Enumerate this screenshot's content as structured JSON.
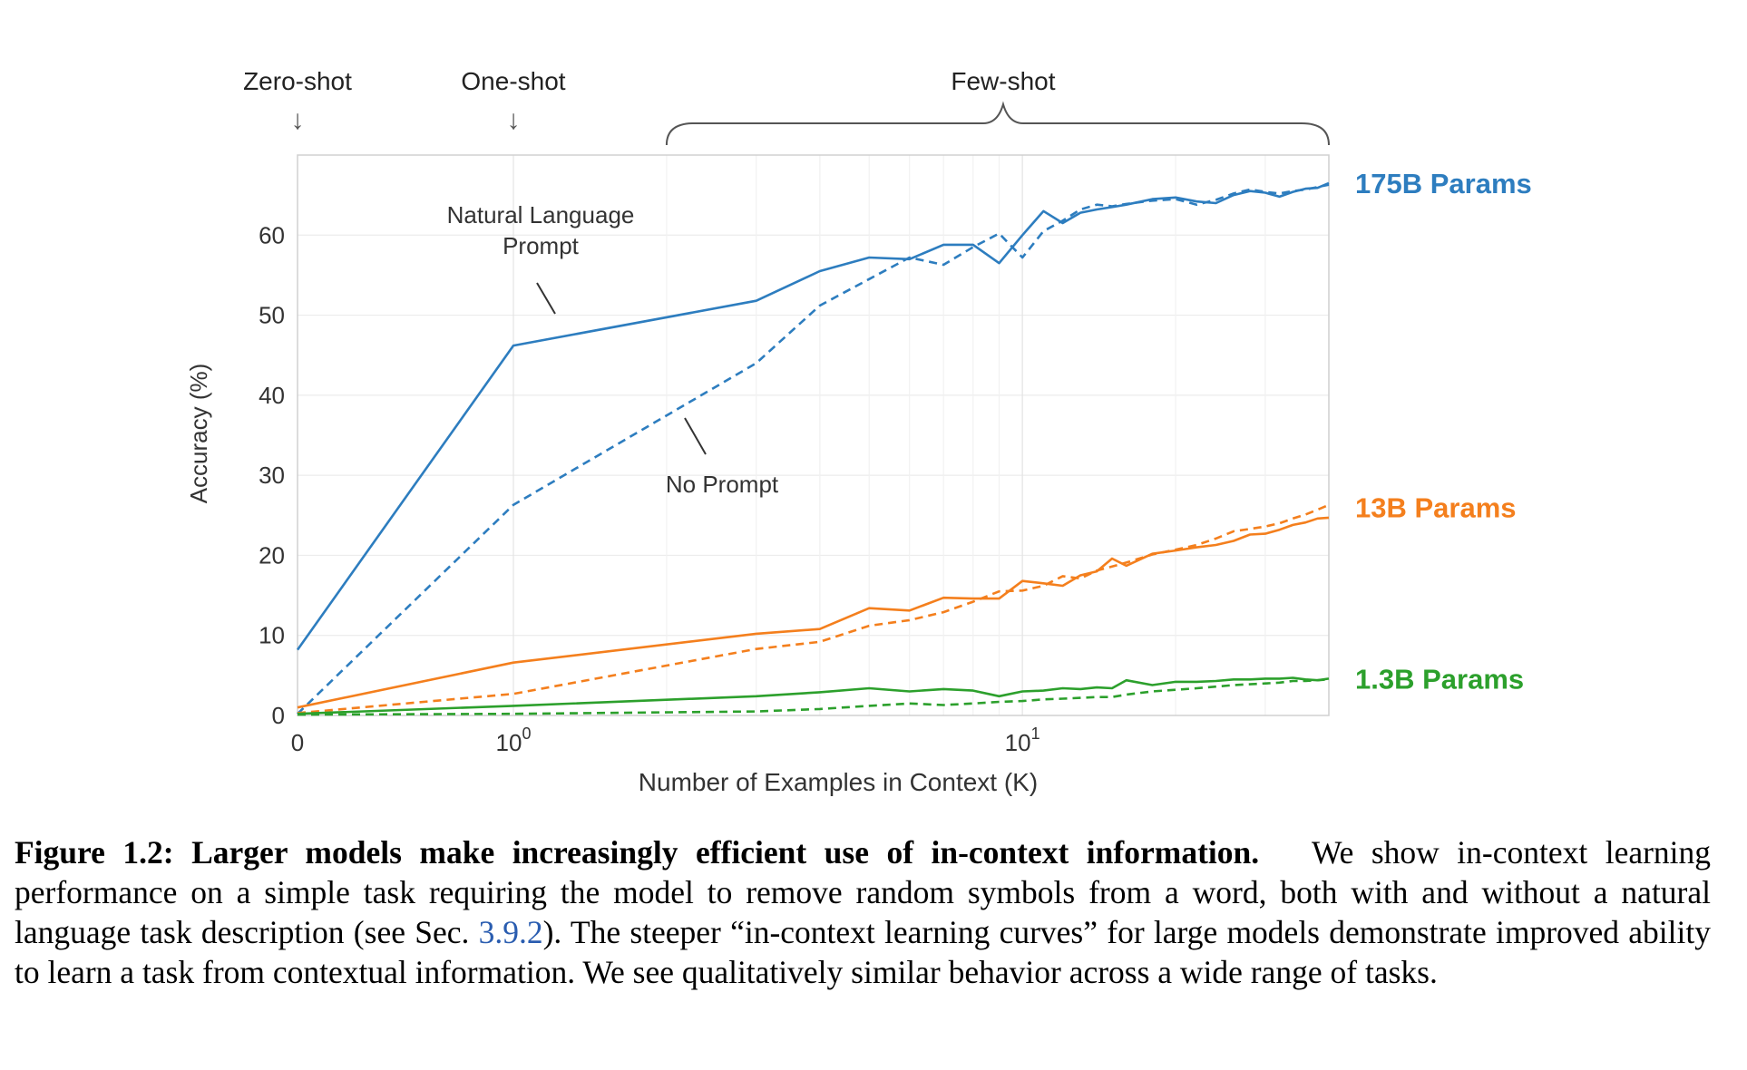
{
  "chart_data": {
    "type": "line",
    "xlabel": "Number of Examples in Context  (K)",
    "ylabel": "Accuracy (%)",
    "xscale": "symlog",
    "xlim": [
      0,
      40
    ],
    "ylim": [
      0,
      70
    ],
    "grid": true,
    "x_ticks": [
      {
        "value": 0,
        "label": "0"
      },
      {
        "value": 1,
        "label": "10^0"
      },
      {
        "value": 10,
        "label": "10^1"
      }
    ],
    "y_ticks": [
      0,
      10,
      20,
      30,
      40,
      50,
      60
    ],
    "regime_labels": [
      {
        "text": "Zero-shot",
        "k": 0,
        "marker": "↓"
      },
      {
        "text": "One-shot",
        "k": 1,
        "marker": "↓"
      },
      {
        "text": "Few-shot",
        "k_range": [
          2,
          40
        ],
        "marker": "brace"
      }
    ],
    "annotations": [
      {
        "text_lines": [
          "Natural Language",
          "Prompt"
        ],
        "points_to": "175B prompt"
      },
      {
        "text_lines": [
          "No Prompt"
        ],
        "points_to": "175B no prompt"
      }
    ],
    "series": [
      {
        "name": "175B Params",
        "color": "#2d7dbf",
        "style": "solid",
        "points": [
          [
            0,
            8.2
          ],
          [
            1,
            46.2
          ],
          [
            3,
            51.8
          ],
          [
            4,
            55.5
          ],
          [
            5,
            57.2
          ],
          [
            6,
            57
          ],
          [
            7,
            58.8
          ],
          [
            8,
            58.8
          ],
          [
            9,
            56.5
          ],
          [
            10,
            60
          ],
          [
            11,
            63
          ],
          [
            12,
            61.5
          ],
          [
            13,
            62.8
          ],
          [
            14,
            63.2
          ],
          [
            15,
            63.5
          ],
          [
            16,
            63.8
          ],
          [
            18,
            64.5
          ],
          [
            20,
            64.7
          ],
          [
            22,
            64.2
          ],
          [
            24,
            64
          ],
          [
            26,
            65
          ],
          [
            28,
            65.5
          ],
          [
            30,
            65.3
          ],
          [
            32,
            64.8
          ],
          [
            34,
            65.4
          ],
          [
            36,
            65.8
          ],
          [
            38,
            65.9
          ],
          [
            40,
            66.5
          ]
        ]
      },
      {
        "name": "175B Params",
        "color": "#2d7dbf",
        "style": "dashed",
        "points": [
          [
            0,
            0.2
          ],
          [
            1,
            26.3
          ],
          [
            3,
            44
          ],
          [
            4,
            51.2
          ],
          [
            5,
            54.5
          ],
          [
            6,
            57.2
          ],
          [
            7,
            56.3
          ],
          [
            8,
            58.5
          ],
          [
            9,
            60.2
          ],
          [
            10,
            57.2
          ],
          [
            11,
            60.5
          ],
          [
            12,
            61.8
          ],
          [
            13,
            63.2
          ],
          [
            14,
            63.8
          ],
          [
            15,
            63.6
          ],
          [
            16,
            63.9
          ],
          [
            18,
            64.3
          ],
          [
            20,
            64.5
          ],
          [
            22,
            63.8
          ],
          [
            24,
            64.4
          ],
          [
            26,
            65.2
          ],
          [
            28,
            65.7
          ],
          [
            30,
            65.4
          ],
          [
            32,
            65.2
          ],
          [
            34,
            65.5
          ],
          [
            36,
            65.7
          ],
          [
            38,
            66
          ],
          [
            40,
            66.3
          ]
        ]
      },
      {
        "name": "13B Params",
        "color": "#f47f1d",
        "style": "solid",
        "points": [
          [
            0,
            1
          ],
          [
            1,
            6.6
          ],
          [
            3,
            10.2
          ],
          [
            4,
            10.8
          ],
          [
            5,
            13.4
          ],
          [
            6,
            13.1
          ],
          [
            7,
            14.7
          ],
          [
            8,
            14.6
          ],
          [
            9,
            14.6
          ],
          [
            10,
            16.8
          ],
          [
            11,
            16.5
          ],
          [
            12,
            16.2
          ],
          [
            13,
            17.5
          ],
          [
            14,
            18
          ],
          [
            15,
            19.6
          ],
          [
            16,
            18.7
          ],
          [
            18,
            20.2
          ],
          [
            20,
            20.6
          ],
          [
            22,
            21
          ],
          [
            24,
            21.3
          ],
          [
            26,
            21.8
          ],
          [
            28,
            22.6
          ],
          [
            30,
            22.7
          ],
          [
            32,
            23.2
          ],
          [
            34,
            23.8
          ],
          [
            36,
            24.1
          ],
          [
            38,
            24.6
          ],
          [
            40,
            24.7
          ]
        ]
      },
      {
        "name": "13B Params",
        "color": "#f47f1d",
        "style": "dashed",
        "points": [
          [
            0,
            0.3
          ],
          [
            1,
            2.7
          ],
          [
            3,
            8.3
          ],
          [
            4,
            9.2
          ],
          [
            5,
            11.2
          ],
          [
            6,
            11.9
          ],
          [
            7,
            12.9
          ],
          [
            8,
            14.2
          ],
          [
            9,
            15.5
          ],
          [
            10,
            15.6
          ],
          [
            11,
            16.2
          ],
          [
            12,
            17.4
          ],
          [
            13,
            17.1
          ],
          [
            14,
            18.1
          ],
          [
            15,
            18.6
          ],
          [
            16,
            19.1
          ],
          [
            18,
            20.1
          ],
          [
            20,
            20.7
          ],
          [
            22,
            21.3
          ],
          [
            24,
            22.1
          ],
          [
            26,
            23
          ],
          [
            28,
            23.3
          ],
          [
            30,
            23.6
          ],
          [
            32,
            24
          ],
          [
            34,
            24.6
          ],
          [
            36,
            25.1
          ],
          [
            38,
            25.7
          ],
          [
            40,
            26.3
          ]
        ]
      },
      {
        "name": "1.3B Params",
        "color": "#2ca02c",
        "style": "solid",
        "points": [
          [
            0,
            0.2
          ],
          [
            1,
            1.2
          ],
          [
            3,
            2.4
          ],
          [
            4,
            2.9
          ],
          [
            5,
            3.4
          ],
          [
            6,
            3
          ],
          [
            7,
            3.3
          ],
          [
            8,
            3.1
          ],
          [
            9,
            2.4
          ],
          [
            10,
            3
          ],
          [
            11,
            3.1
          ],
          [
            12,
            3.4
          ],
          [
            13,
            3.3
          ],
          [
            14,
            3.5
          ],
          [
            15,
            3.4
          ],
          [
            16,
            4.4
          ],
          [
            18,
            3.8
          ],
          [
            20,
            4.2
          ],
          [
            22,
            4.2
          ],
          [
            24,
            4.3
          ],
          [
            26,
            4.5
          ],
          [
            28,
            4.5
          ],
          [
            30,
            4.6
          ],
          [
            32,
            4.6
          ],
          [
            34,
            4.7
          ],
          [
            36,
            4.5
          ],
          [
            38,
            4.4
          ],
          [
            40,
            4.6
          ]
        ]
      },
      {
        "name": "1.3B Params",
        "color": "#2ca02c",
        "style": "dashed",
        "points": [
          [
            0,
            0.1
          ],
          [
            1,
            0.2
          ],
          [
            3,
            0.5
          ],
          [
            4,
            0.8
          ],
          [
            5,
            1.2
          ],
          [
            6,
            1.5
          ],
          [
            7,
            1.3
          ],
          [
            8,
            1.5
          ],
          [
            9,
            1.7
          ],
          [
            10,
            1.8
          ],
          [
            11,
            2
          ],
          [
            12,
            2.1
          ],
          [
            13,
            2.2
          ],
          [
            14,
            2.3
          ],
          [
            15,
            2.3
          ],
          [
            16,
            2.6
          ],
          [
            18,
            3
          ],
          [
            20,
            3.2
          ],
          [
            22,
            3.4
          ],
          [
            24,
            3.6
          ],
          [
            26,
            3.8
          ],
          [
            28,
            3.9
          ],
          [
            30,
            4
          ],
          [
            32,
            4.1
          ],
          [
            34,
            4.3
          ],
          [
            36,
            4.3
          ],
          [
            38,
            4.4
          ],
          [
            40,
            4.5
          ]
        ]
      }
    ],
    "series_labels": [
      {
        "text": "175B Params",
        "color": "#2d7dbf",
        "y_value": 66.5
      },
      {
        "text": "13B Params",
        "color": "#f47f1d",
        "y_value": 26
      },
      {
        "text": "1.3B Params",
        "color": "#2ca02c",
        "y_value": 4.6
      }
    ]
  },
  "caption": {
    "label": "Figure 1.2:",
    "heading": "Larger models make increasingly efficient use of in-context information.",
    "text_before_link": "We show in-context learning performance on a simple task requiring the model to remove random symbols from a word, both with and without a natural language task description (see Sec.",
    "link_text": "3.9.2",
    "text_after_link": "). The steeper “in-context learning curves” for large models demonstrate improved ability to learn a task from contextual information. We see qualitatively similar behavior across a wide range of tasks."
  }
}
